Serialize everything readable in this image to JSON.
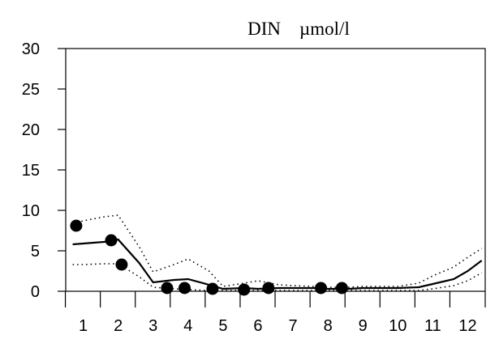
{
  "chart_data": {
    "type": "line",
    "title": "DIN    µmol/l",
    "xlabel": "",
    "ylabel": "",
    "x_ticks": [
      "1",
      "2",
      "3",
      "4",
      "5",
      "6",
      "7",
      "8",
      "9",
      "10",
      "11",
      "12"
    ],
    "y_ticks": [
      "0",
      "5",
      "10",
      "15",
      "20",
      "25",
      "30"
    ],
    "xlim": [
      0.5,
      12.5
    ],
    "ylim": [
      0,
      30
    ],
    "grid": false,
    "legend": "none",
    "series": [
      {
        "style": "solid",
        "color": "#000000",
        "x": [
          0.7,
          1.0,
          1.6,
          2.0,
          2.6,
          3.0,
          3.6,
          4.0,
          4.6,
          5.0,
          5.6,
          6.0,
          6.6,
          7.0,
          7.6,
          8.0,
          8.6,
          9.0,
          9.6,
          10.0,
          10.6,
          11.0,
          11.6,
          12.0,
          12.4
        ],
        "y": [
          5.8,
          5.9,
          6.1,
          6.4,
          3.5,
          1.1,
          1.4,
          1.5,
          0.8,
          0.3,
          0.4,
          0.3,
          0.4,
          0.4,
          0.4,
          0.3,
          0.3,
          0.4,
          0.4,
          0.4,
          0.5,
          0.9,
          1.5,
          2.5,
          3.8
        ]
      },
      {
        "style": "dotted",
        "color": "#000000",
        "x": [
          0.7,
          1.0,
          1.6,
          2.0,
          2.6,
          3.0,
          3.6,
          4.0,
          4.6,
          5.0,
          5.6,
          6.0,
          6.6,
          7.0,
          7.6,
          8.0,
          8.6,
          9.0,
          9.6,
          10.0,
          10.6,
          11.0,
          11.6,
          12.0,
          12.4
        ],
        "y": [
          8.4,
          8.7,
          9.2,
          9.4,
          5.5,
          2.4,
          3.3,
          4.0,
          2.5,
          0.6,
          1.0,
          1.3,
          0.8,
          0.7,
          0.6,
          0.5,
          0.5,
          0.6,
          0.6,
          0.6,
          1.0,
          1.9,
          3.0,
          4.2,
          5.3
        ]
      },
      {
        "style": "dotted",
        "color": "#000000",
        "x": [
          0.7,
          1.0,
          1.6,
          2.0,
          2.6,
          3.0,
          3.6,
          4.0,
          4.6,
          5.0,
          5.6,
          6.0,
          6.6,
          7.0,
          7.6,
          8.0,
          8.6,
          9.0,
          9.6,
          10.0,
          10.6,
          11.0,
          11.6,
          12.0,
          12.4
        ],
        "y": [
          3.3,
          3.3,
          3.4,
          3.4,
          1.8,
          0.5,
          0.3,
          0.2,
          0.1,
          0.1,
          0.1,
          0.1,
          0.1,
          0.1,
          0.1,
          0.1,
          0.1,
          0.1,
          0.1,
          0.1,
          0.1,
          0.3,
          0.7,
          1.3,
          2.3
        ]
      },
      {
        "style": "points",
        "color": "#000000",
        "x": [
          0.8,
          1.8,
          2.1,
          3.4,
          3.9,
          4.7,
          5.6,
          6.3,
          7.8,
          8.4
        ],
        "y": [
          8.1,
          6.3,
          3.3,
          0.4,
          0.4,
          0.3,
          0.2,
          0.4,
          0.4,
          0.4
        ]
      }
    ]
  }
}
